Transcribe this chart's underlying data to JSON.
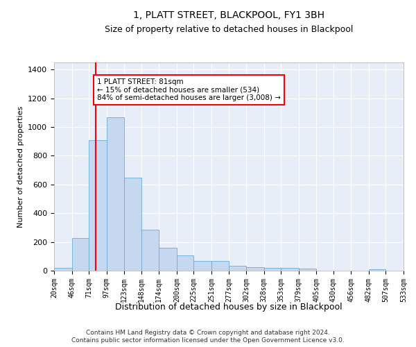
{
  "title": "1, PLATT STREET, BLACKPOOL, FY1 3BH",
  "subtitle": "Size of property relative to detached houses in Blackpool",
  "xlabel": "Distribution of detached houses by size in Blackpool",
  "ylabel": "Number of detached properties",
  "bar_color": "#c5d8f0",
  "bar_edge_color": "#6aaad4",
  "background_color": "#e8eef8",
  "grid_color": "#ffffff",
  "annotation_text": "1 PLATT STREET: 81sqm\n← 15% of detached houses are smaller (534)\n84% of semi-detached houses are larger (3,008) →",
  "vline_x": 81,
  "vline_color": "red",
  "footer": "Contains HM Land Registry data © Crown copyright and database right 2024.\nContains public sector information licensed under the Open Government Licence v3.0.",
  "bins": [
    20,
    46,
    71,
    97,
    123,
    148,
    174,
    200,
    225,
    251,
    277,
    302,
    328,
    353,
    379,
    405,
    430,
    456,
    482,
    507,
    533
  ],
  "counts": [
    20,
    225,
    910,
    1070,
    650,
    285,
    160,
    105,
    70,
    70,
    35,
    25,
    20,
    20,
    13,
    0,
    0,
    0,
    12,
    0,
    0
  ],
  "ylim": [
    0,
    1450
  ],
  "yticks": [
    0,
    200,
    400,
    600,
    800,
    1000,
    1200,
    1400
  ]
}
